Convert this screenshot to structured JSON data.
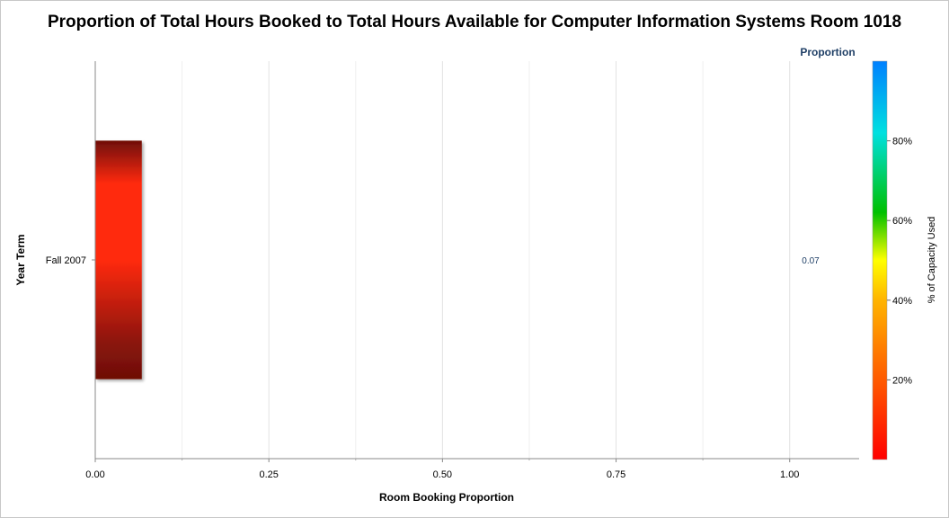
{
  "chart_data": {
    "type": "bar",
    "orientation": "horizontal",
    "title": "Proportion of Total Hours Booked to Total Hours Available for Computer Information Systems Room 1018",
    "xlabel": "Room Booking Proportion",
    "ylabel": "Year Term",
    "categories": [
      "Fall 2007"
    ],
    "values": [
      0.067
    ],
    "value_labels": [
      "0.07"
    ],
    "value_column_header": "Proportion",
    "xlim": [
      0,
      1.1
    ],
    "xticks": [
      0,
      0.25,
      0.5,
      0.75,
      1.0
    ],
    "xtick_labels": [
      "0.00",
      "0.25",
      "0.50",
      "0.75",
      "1.00"
    ],
    "grid": true,
    "colorbar": {
      "label": "% of Capacity Used",
      "range": [
        0,
        100
      ],
      "ticks": [
        20,
        40,
        60,
        80
      ],
      "tick_labels": [
        "20%",
        "40%",
        "60%",
        "80%"
      ],
      "colors": [
        "#ff0000",
        "#ff8000",
        "#ffff00",
        "#00c000",
        "#00e0e0",
        "#0080ff"
      ]
    },
    "bar_color": "#ff2a10"
  }
}
